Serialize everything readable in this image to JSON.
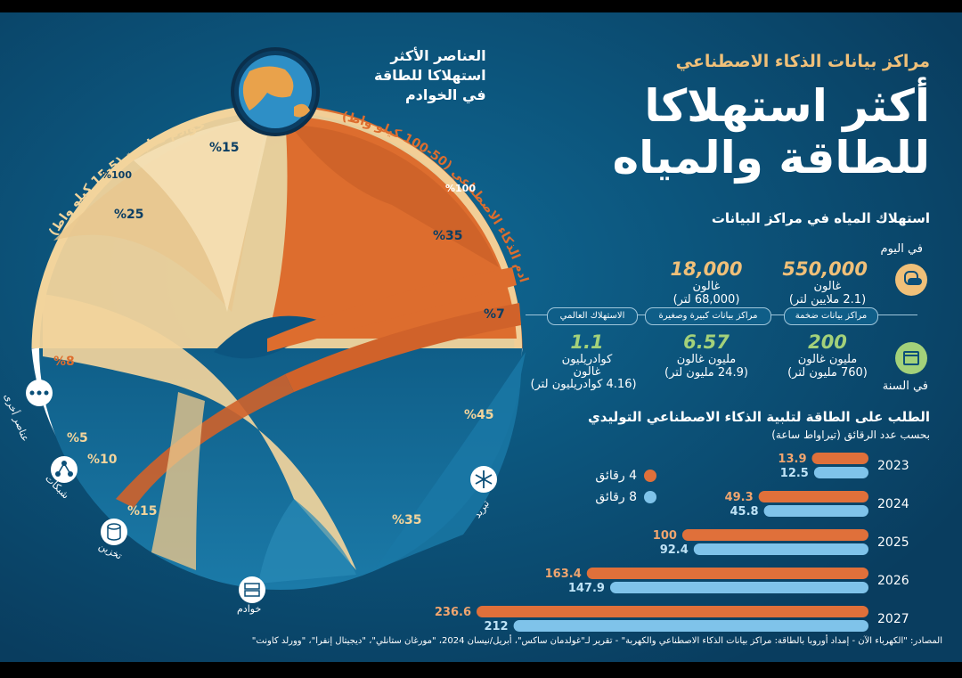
{
  "header": {
    "subtitle": "مراكز بيانات الذكاء الاصطناعي",
    "title_line1": "أكثر استهلاكا",
    "title_line2": "للطاقة والمياه"
  },
  "chord": {
    "center_title_l1": "العناصر الأكثر",
    "center_title_l2": "استهلاكا للطاقة",
    "center_title_l3": "في الخوادم",
    "traditional_label": "خوادم تقليدية (5-15 كيلو واط)",
    "traditional_pct": "%100",
    "ai_label": "خوادم الذكاء الاصطناعي (50-100 كيلو واط)",
    "ai_pct": "%100",
    "top_pcts": [
      "%15",
      "%25",
      "%35",
      "%7"
    ],
    "bottom_pcts": [
      "%8",
      "%5",
      "%10",
      "%15",
      "%35",
      "%45"
    ],
    "categories": {
      "smart": "عناصر أخرى",
      "network": "شبكات",
      "storage": "تخزين",
      "servers": "خوادم",
      "cooling": "تبريد"
    }
  },
  "water": {
    "title": "استهلاك المياه في مراكز البيانات",
    "per_day": "في اليوم",
    "per_year": "في السنة",
    "col_large": {
      "pill": "مراكز بيانات ضخمة",
      "day_value": "550,000",
      "day_unit": "غالون",
      "day_liters": "(2.1 ملايين لتر)",
      "year_value": "200",
      "year_unit": "مليون غالون",
      "year_liters": "(760 مليون لتر)"
    },
    "col_medium": {
      "pill": "مراكز بيانات كبيرة وصغيرة",
      "day_value": "18,000",
      "day_unit": "غالون",
      "day_liters": "(68,000 لتر)",
      "year_value": "6.57",
      "year_unit": "مليون غالون",
      "year_liters": "(24.9 مليون لتر)"
    },
    "col_global": {
      "pill": "الاستهلاك العالمي",
      "year_value": "1.1",
      "year_unit": "كوادريليون",
      "year_unit2": "غالون",
      "year_liters": "(4.16 كوادريليون لتر)"
    }
  },
  "demand": {
    "title": "الطلب على الطاقة لتلبية الذكاء الاصطناعي التوليدي",
    "subtitle": "بحسب عدد الرقائق   (تيراواط ساعة)",
    "legend_4": "4 رقائق",
    "legend_8": "8 رقائق"
  },
  "chart_data": {
    "type": "bar",
    "title": "الطلب على الطاقة لتلبية الذكاء الاصطناعي التوليدي",
    "categories": [
      "2023",
      "2024",
      "2025",
      "2026",
      "2027"
    ],
    "series": [
      {
        "name": "4 رقائق",
        "color": "#e0703a",
        "values": [
          13.9,
          49.3,
          100,
          163.4,
          236.6
        ],
        "labels": [
          "13.9",
          "49.3",
          "100",
          "163.4",
          "236.6"
        ]
      },
      {
        "name": "8 رقائق",
        "color": "#7fc3ea",
        "values": [
          12.5,
          45.8,
          92.4,
          147.9,
          212
        ],
        "labels": [
          "12.5",
          "45.8",
          "92.4",
          "147.9",
          "212"
        ]
      }
    ]
  },
  "footer": {
    "sources": "المصادر: \"الكهرباء الآن - إمداد أوروبا بالطاقة: مراكز بيانات الذكاء الاصطناعي والكهربة\" - تقرير لـ\"غولدمان ساكس\"، أبريل/نيسان 2024، \"مورغان ستانلي\"، \"ديجيتال إنفرا\"، \"وورلد كاونت\""
  },
  "colors": {
    "background": "#0b4f78",
    "cream": "#f2d49c",
    "orange": "#dd6d2e",
    "light_blue": "#7fc3ea",
    "green": "#a3d17a",
    "gold": "#f0c079"
  },
  "icons": [
    "globe-icon",
    "sun-cloud-icon",
    "calendar-icon",
    "snowflake-icon",
    "server-icon",
    "database-icon",
    "network-icon",
    "dots-icon"
  ]
}
